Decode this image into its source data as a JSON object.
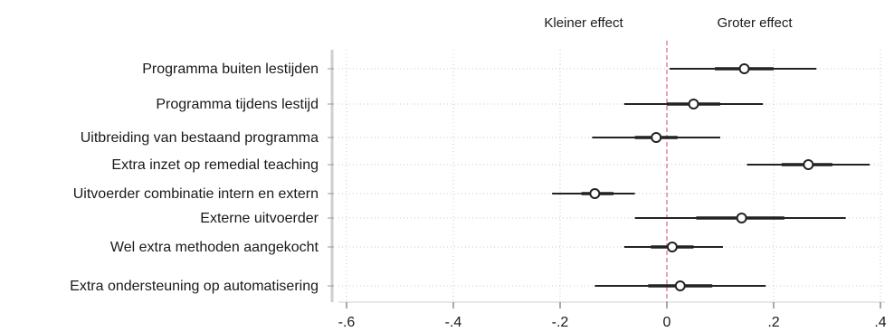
{
  "chart_data": {
    "type": "forest",
    "header_left": "Kleiner effect",
    "header_right": "Groter effect",
    "categories": [
      "Programma buiten lestijden",
      "Programma tijdens lestijd",
      "Uitbreiding van bestaand programma",
      "Extra inzet op remedial teaching",
      "Uitvoerder combinatie intern en extern",
      "Externe uitvoerder",
      "Wel extra methoden aangekocht",
      "Extra ondersteuning op automatisering"
    ],
    "estimates": [
      0.145,
      0.05,
      -0.02,
      0.265,
      -0.135,
      0.14,
      0.01,
      0.025
    ],
    "ci_low": [
      0.005,
      -0.08,
      -0.14,
      0.15,
      -0.215,
      -0.06,
      -0.08,
      -0.135
    ],
    "ci_high": [
      0.28,
      0.18,
      0.1,
      0.38,
      -0.06,
      0.335,
      0.105,
      0.185
    ],
    "ci_inner_low": [
      0.09,
      0.0,
      -0.06,
      0.215,
      -0.16,
      0.055,
      -0.03,
      -0.035
    ],
    "ci_inner_high": [
      0.2,
      0.1,
      0.02,
      0.31,
      -0.1,
      0.22,
      0.05,
      0.085
    ],
    "x_ticks": [
      -0.6,
      -0.4,
      -0.2,
      0,
      0.2,
      0.4
    ],
    "x_tick_labels": [
      "-.6",
      "-.4",
      "-.2",
      "0",
      ".2",
      ".4"
    ],
    "xlim": [
      -0.6,
      0.4
    ],
    "reference_line": 0,
    "grid": true,
    "colors": {
      "marker": "#222222",
      "ci": "#222222",
      "reference": "#d98a9a",
      "grid": "#c9c9c9",
      "axis": "#cfcfcf"
    }
  }
}
